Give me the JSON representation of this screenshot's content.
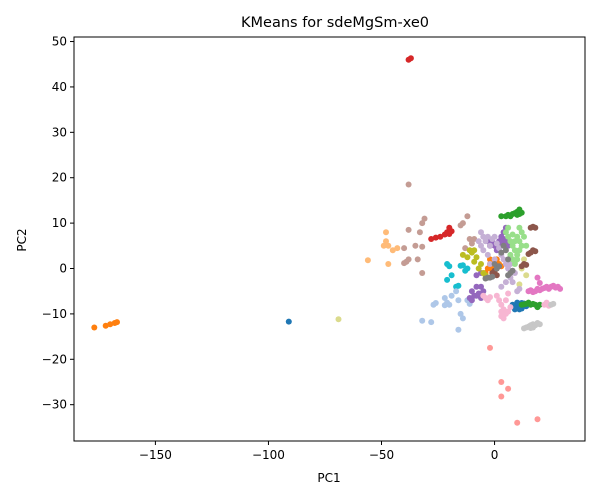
{
  "chart_data": {
    "type": "scatter",
    "title": "KMeans for sdeMgSm-xe0",
    "xlabel": "PC1",
    "ylabel": "PC2",
    "xlim": [
      -186,
      40
    ],
    "ylim": [
      -38,
      51
    ],
    "xticks": [
      -150,
      -100,
      -50,
      0
    ],
    "yticks": [
      -30,
      -20,
      -10,
      0,
      10,
      20,
      30,
      40,
      50
    ],
    "xtick_labels": [
      "−150",
      "−100",
      "−50",
      "0"
    ],
    "ytick_labels": [
      "−30",
      "−20",
      "−10",
      "0",
      "10",
      "20",
      "30",
      "40",
      "50"
    ],
    "grid": false,
    "legend": "none",
    "series": [
      {
        "color": "#ff7f0e",
        "points": [
          [
            -177,
            -13
          ],
          [
            -172,
            -12.6
          ],
          [
            -170,
            -12.3
          ],
          [
            -168,
            -12
          ],
          [
            -167,
            -11.8
          ],
          [
            -3,
            0
          ],
          [
            -2,
            1
          ],
          [
            -1,
            0.5
          ],
          [
            0,
            1.5
          ],
          [
            -4,
            -1
          ],
          [
            -1,
            -0.5
          ],
          [
            1,
            0
          ],
          [
            2,
            1
          ],
          [
            0,
            -1
          ],
          [
            -2,
            2
          ],
          [
            3,
            0.5
          ],
          [
            1,
            2
          ]
        ]
      },
      {
        "color": "#1f77b4",
        "points": [
          [
            -91,
            -11.7
          ],
          [
            8,
            -8
          ],
          [
            9,
            -9
          ],
          [
            10,
            -8.5
          ],
          [
            11,
            -7.8
          ],
          [
            12,
            -8.8
          ],
          [
            13,
            -8
          ],
          [
            14,
            -8.3
          ],
          [
            10,
            -7.5
          ],
          [
            12,
            -7.6
          ],
          [
            9,
            -8.6
          ],
          [
            11,
            -9
          ],
          [
            13,
            -7.7
          ]
        ]
      },
      {
        "color": "#dbdb8d",
        "points": [
          [
            -69,
            -11.2
          ],
          [
            10,
            3
          ],
          [
            12,
            0
          ],
          [
            14,
            -1.5
          ],
          [
            11,
            -3.5
          ],
          [
            9,
            1.5
          ],
          [
            13,
            2
          ]
        ]
      },
      {
        "color": "#d62728",
        "points": [
          [
            -38,
            46
          ],
          [
            -37,
            46.3
          ],
          [
            -28,
            6.5
          ],
          [
            -26,
            6.8
          ],
          [
            -24,
            7
          ],
          [
            -22,
            7.5
          ],
          [
            -21,
            8
          ],
          [
            -20,
            7.6
          ],
          [
            -19,
            8.2
          ],
          [
            -20,
            9
          ]
        ]
      },
      {
        "color": "#c49c94",
        "points": [
          [
            -38,
            18.5
          ],
          [
            -33,
            8
          ],
          [
            -31,
            11
          ],
          [
            -32,
            10
          ],
          [
            -38,
            8.5
          ],
          [
            -35,
            5
          ],
          [
            -40,
            4.5
          ],
          [
            -32,
            4.8
          ],
          [
            -34,
            2
          ],
          [
            -39,
            1.5
          ],
          [
            -38,
            2
          ],
          [
            -40,
            1.2
          ],
          [
            -32,
            -1
          ],
          [
            -14,
            10
          ],
          [
            -12,
            11.5
          ],
          [
            -15,
            9.5
          ],
          [
            -11,
            6.5
          ],
          [
            -13,
            4.5
          ],
          [
            -10,
            5.5
          ],
          [
            -9,
            6.5
          ]
        ]
      },
      {
        "color": "#ffbb78",
        "points": [
          [
            -56,
            1.8
          ],
          [
            -48,
            8
          ],
          [
            -47,
            5
          ],
          [
            -48,
            6
          ],
          [
            -49,
            5
          ],
          [
            -45,
            4
          ],
          [
            -43,
            4.5
          ],
          [
            -47,
            1
          ]
        ]
      },
      {
        "color": "#17becf",
        "points": [
          [
            -21,
            1
          ],
          [
            -20,
            0.5
          ],
          [
            -21,
            -2.5
          ],
          [
            -19,
            -1.5
          ],
          [
            -17,
            -4
          ],
          [
            -16,
            -3.8
          ],
          [
            -15,
            0.6
          ],
          [
            -13,
            -0.5
          ],
          [
            -12,
            0
          ],
          [
            -14,
            0.7
          ]
        ]
      },
      {
        "color": "#aec7e8",
        "points": [
          [
            -32,
            -11.5
          ],
          [
            -28,
            -11.8
          ],
          [
            -27,
            -8
          ],
          [
            -26,
            -7.6
          ],
          [
            -22,
            -6.5
          ],
          [
            -21,
            -7.5
          ],
          [
            -20,
            -8
          ],
          [
            -19,
            -6
          ],
          [
            -17,
            -5
          ],
          [
            -16,
            -7
          ],
          [
            -15,
            -10
          ],
          [
            -14,
            -11
          ],
          [
            -16,
            -13.5
          ],
          [
            -12,
            -7
          ],
          [
            -11,
            -7.8
          ],
          [
            -22,
            -8.1
          ]
        ]
      },
      {
        "color": "#9467bd",
        "points": [
          [
            -10,
            -5
          ],
          [
            -9,
            -6
          ],
          [
            -8,
            -4
          ],
          [
            -7,
            -5.5
          ],
          [
            -6,
            -4
          ],
          [
            -5,
            -5
          ],
          [
            -11,
            -6.5
          ],
          [
            -10,
            -7
          ],
          [
            -8,
            -6
          ],
          [
            -6,
            -6.5
          ],
          [
            -3,
            6
          ],
          [
            -1,
            6
          ],
          [
            0,
            5
          ],
          [
            2,
            6
          ],
          [
            3,
            7
          ],
          [
            4,
            8
          ],
          [
            5,
            6
          ],
          [
            4,
            5
          ],
          [
            6,
            5
          ],
          [
            3,
            5.5
          ],
          [
            1,
            4
          ],
          [
            -2,
            5
          ],
          [
            5,
            9
          ],
          [
            4,
            6.5
          ],
          [
            -6,
            -1
          ],
          [
            -8,
            -1.5
          ]
        ]
      },
      {
        "color": "#bcbd22",
        "points": [
          [
            -14,
            3
          ],
          [
            -12,
            2.5
          ],
          [
            -11,
            4
          ],
          [
            -10,
            3.5
          ],
          [
            -9,
            1.5
          ],
          [
            -8,
            2.5
          ],
          [
            -7,
            0
          ],
          [
            -6,
            1
          ],
          [
            -5,
            -1
          ],
          [
            -9,
            4
          ],
          [
            -4,
            -1.5
          ]
        ]
      },
      {
        "color": "#c5b0d5",
        "points": [
          [
            -6,
            8
          ],
          [
            -5,
            7
          ],
          [
            -4,
            6
          ],
          [
            -3,
            7
          ],
          [
            -2,
            5
          ],
          [
            -1,
            6.5
          ],
          [
            0,
            7
          ],
          [
            1,
            5.5
          ],
          [
            2,
            4.5
          ],
          [
            3,
            3
          ],
          [
            4,
            2
          ],
          [
            5,
            1
          ],
          [
            6,
            0
          ],
          [
            7,
            1
          ],
          [
            8,
            2
          ],
          [
            9,
            -1
          ],
          [
            -5,
            4
          ],
          [
            -3,
            3
          ],
          [
            -6,
            5
          ],
          [
            0,
            2
          ],
          [
            -2,
            1
          ],
          [
            7,
            -2
          ],
          [
            8,
            -3
          ],
          [
            5,
            -3
          ],
          [
            10,
            -5
          ],
          [
            11,
            -4.5
          ],
          [
            3,
            -4
          ],
          [
            -7,
            6
          ]
        ]
      },
      {
        "color": "#2ca02c",
        "points": [
          [
            3,
            11.5
          ],
          [
            5,
            11.5
          ],
          [
            6,
            11.8
          ],
          [
            8,
            12
          ],
          [
            9,
            12.2
          ],
          [
            10,
            12.5
          ],
          [
            11,
            12
          ],
          [
            12,
            12.3
          ],
          [
            10,
            11.8
          ],
          [
            11,
            13
          ],
          [
            7,
            11.5
          ],
          [
            12,
            -8
          ],
          [
            14,
            -7.8
          ],
          [
            15,
            -7.5
          ],
          [
            16,
            -8
          ],
          [
            17,
            -7.8
          ],
          [
            18,
            -8
          ],
          [
            19,
            -8.5
          ],
          [
            13,
            -7.9
          ],
          [
            20,
            -8
          ]
        ]
      },
      {
        "color": "#98df8a",
        "points": [
          [
            5,
            8
          ],
          [
            6,
            7
          ],
          [
            7,
            6
          ],
          [
            8,
            5
          ],
          [
            9,
            4
          ],
          [
            10,
            3
          ],
          [
            11,
            4
          ],
          [
            12,
            5
          ],
          [
            8,
            7.5
          ],
          [
            9,
            6
          ],
          [
            10,
            7
          ],
          [
            11,
            6
          ],
          [
            12,
            8
          ],
          [
            7,
            3
          ],
          [
            8,
            2
          ],
          [
            9,
            1
          ],
          [
            10,
            2
          ],
          [
            13,
            7
          ],
          [
            6,
            9
          ],
          [
            14,
            5
          ],
          [
            11,
            9
          ]
        ]
      },
      {
        "color": "#8c564b",
        "points": [
          [
            16,
            9
          ],
          [
            17,
            9.2
          ],
          [
            18,
            9
          ],
          [
            16,
            3.5
          ],
          [
            17,
            4
          ],
          [
            18,
            3.8
          ],
          [
            15,
            3.2
          ],
          [
            12,
            0.5
          ],
          [
            13,
            1
          ],
          [
            14,
            0.8
          ],
          [
            -1,
            -1
          ],
          [
            0,
            -0.5
          ],
          [
            1,
            -1.5
          ]
        ]
      },
      {
        "color": "#7f7f7f",
        "points": [
          [
            4,
            5
          ],
          [
            5,
            4
          ],
          [
            3,
            3.5
          ],
          [
            6,
            2
          ],
          [
            0,
            1
          ],
          [
            1,
            0
          ],
          [
            2,
            0.5
          ],
          [
            -2,
            -2
          ],
          [
            -1,
            -1.8
          ],
          [
            -3,
            -2
          ],
          [
            8,
            -0.5
          ],
          [
            7,
            -1
          ],
          [
            6,
            -1.5
          ],
          [
            -4,
            -2.2
          ]
        ]
      },
      {
        "color": "#e377c2",
        "points": [
          [
            15,
            -5
          ],
          [
            16,
            -4.8
          ],
          [
            17,
            -5.2
          ],
          [
            18,
            -5
          ],
          [
            19,
            -4.5
          ],
          [
            20,
            -4.8
          ],
          [
            21,
            -4.5
          ],
          [
            22,
            -4.3
          ],
          [
            23,
            -4
          ],
          [
            24,
            -4.5
          ],
          [
            25,
            -4
          ],
          [
            26,
            -3.8
          ],
          [
            27,
            -4.2
          ],
          [
            28,
            -4
          ],
          [
            29,
            -4.5
          ],
          [
            19,
            -2
          ],
          [
            20,
            -3.2
          ]
        ]
      },
      {
        "color": "#f7b6d2",
        "points": [
          [
            -5,
            -6
          ],
          [
            -4,
            -6.5
          ],
          [
            -3,
            -7
          ],
          [
            1,
            -6
          ],
          [
            2,
            -7
          ],
          [
            3,
            -8
          ],
          [
            4,
            -9
          ],
          [
            5,
            -10
          ],
          [
            3,
            -10.5
          ],
          [
            4,
            -11
          ],
          [
            6,
            -9.5
          ],
          [
            7,
            -8.5
          ],
          [
            5,
            -7
          ],
          [
            3,
            -9.5
          ],
          [
            22,
            -8
          ],
          [
            23,
            -7.5
          ],
          [
            24,
            -8.2
          ],
          [
            -2,
            -6.3
          ],
          [
            6,
            -5.5
          ]
        ]
      },
      {
        "color": "#c7c7c7",
        "points": [
          [
            13,
            -13.2
          ],
          [
            14,
            -13
          ],
          [
            15,
            -12.8
          ],
          [
            16,
            -12.5
          ],
          [
            17,
            -12.3
          ],
          [
            18,
            -12.5
          ],
          [
            19,
            -12
          ],
          [
            20,
            -12.3
          ],
          [
            16,
            -13.1
          ],
          [
            17,
            -13
          ],
          [
            25,
            -8
          ],
          [
            26,
            -7.8
          ]
        ]
      },
      {
        "color": "#ff9896",
        "points": [
          [
            -2,
            -17.5
          ],
          [
            3,
            -25
          ],
          [
            3,
            -28.2
          ],
          [
            6,
            -26.5
          ],
          [
            10,
            -34
          ],
          [
            19,
            -33.2
          ]
        ]
      }
    ]
  }
}
